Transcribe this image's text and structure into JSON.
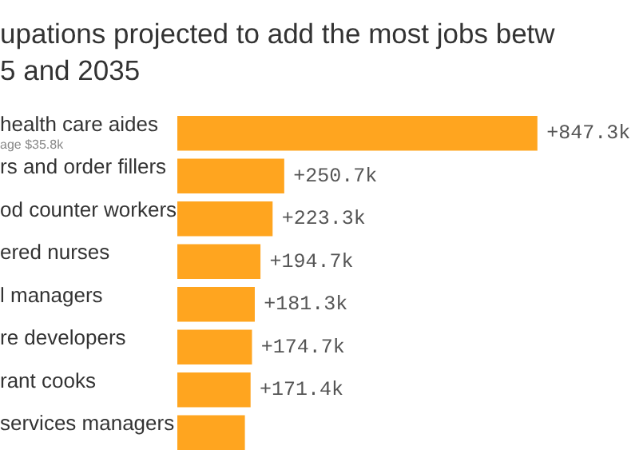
{
  "chart_data": {
    "type": "bar",
    "orientation": "horizontal",
    "title": "upations projected to add the most jobs betw\n5 and 2035",
    "categories": [
      "health care aides",
      "rs and order fillers",
      "od counter workers",
      "ered nurses",
      "l managers",
      "re developers",
      "rant cooks",
      "services managers"
    ],
    "values": [
      847.3,
      250.7,
      223.3,
      194.7,
      181.3,
      174.7,
      171.4,
      158
    ],
    "value_labels": [
      "+847.3k",
      "+250.7k",
      "+223.3k",
      "+194.7k",
      "+181.3k",
      "+174.7k",
      "+171.4k",
      null
    ],
    "color": "#ffa51f",
    "annotations": [
      "age $35.8k"
    ]
  }
}
